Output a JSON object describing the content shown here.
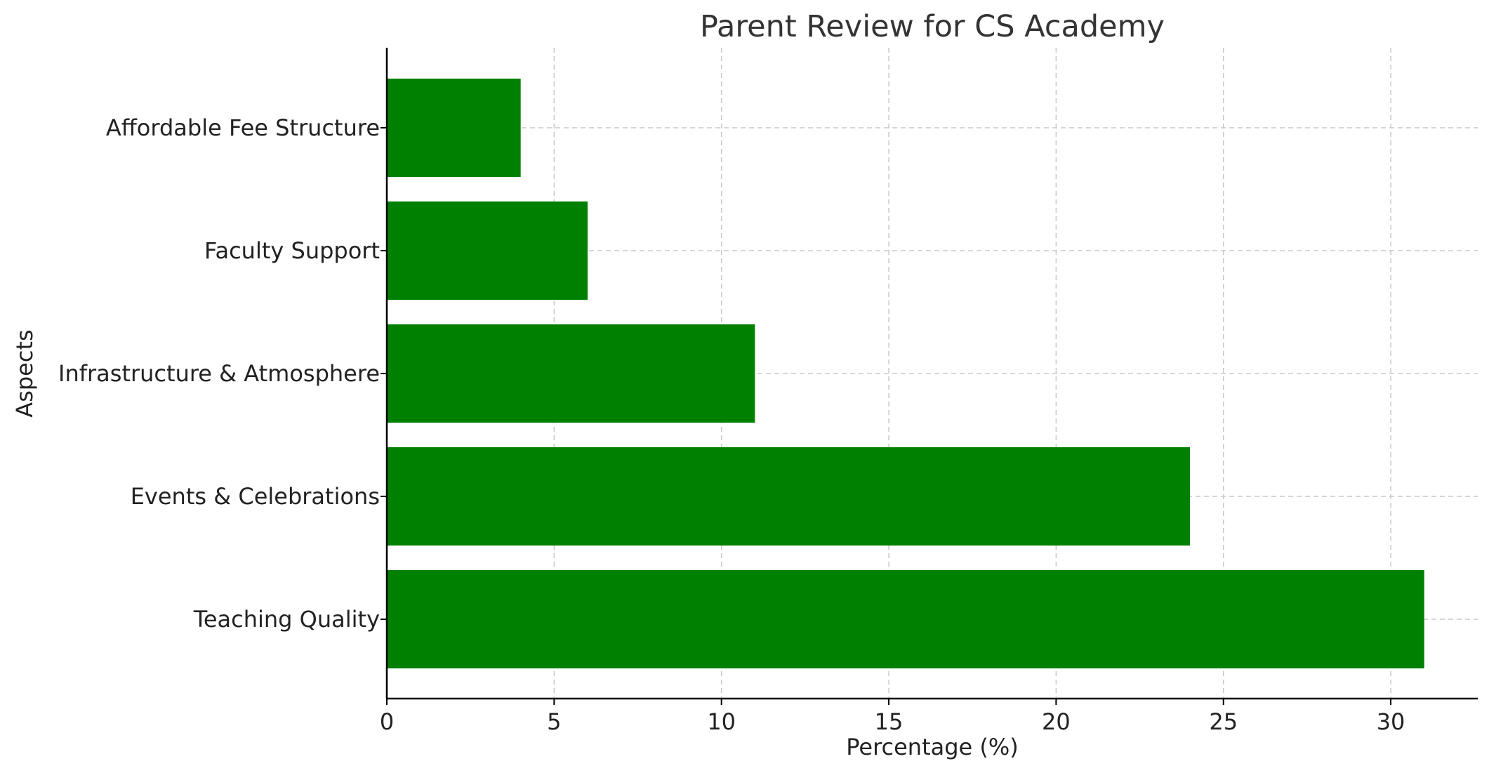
{
  "chart_data": {
    "type": "bar",
    "orientation": "horizontal",
    "title": "Parent Review for CS Academy",
    "xlabel": "Percentage (%)",
    "ylabel": "Aspects",
    "categories": [
      "Teaching Quality",
      "Events & Celebrations",
      "Infrastructure & Atmosphere",
      "Faculty Support",
      "Affordable Fee Structure"
    ],
    "values": [
      31,
      24,
      11,
      6,
      4
    ],
    "xlim": [
      0,
      32.6
    ],
    "xticks": [
      0,
      5,
      10,
      15,
      20,
      25,
      30
    ],
    "grid": true,
    "bar_color": "#008000"
  }
}
